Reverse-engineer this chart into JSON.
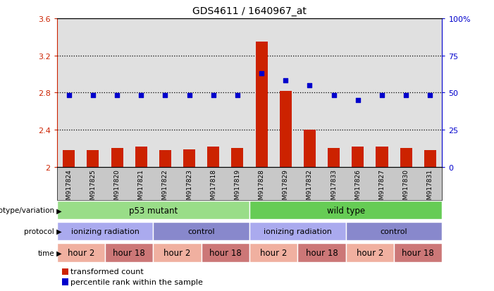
{
  "title": "GDS4611 / 1640967_at",
  "samples": [
    "GSM917824",
    "GSM917825",
    "GSM917820",
    "GSM917821",
    "GSM917822",
    "GSM917823",
    "GSM917818",
    "GSM917819",
    "GSM917828",
    "GSM917829",
    "GSM917832",
    "GSM917833",
    "GSM917826",
    "GSM917827",
    "GSM917830",
    "GSM917831"
  ],
  "bar_values": [
    2.18,
    2.18,
    2.2,
    2.22,
    2.18,
    2.19,
    2.22,
    2.2,
    3.35,
    2.82,
    2.4,
    2.2,
    2.22,
    2.22,
    2.2,
    2.18
  ],
  "dot_values": [
    48,
    48,
    48,
    48,
    48,
    48,
    48,
    48,
    63,
    58,
    55,
    48,
    45,
    48,
    48,
    48
  ],
  "ylim_left": [
    2.0,
    3.6
  ],
  "ylim_right": [
    0,
    100
  ],
  "yticks_left": [
    2.0,
    2.4,
    2.8,
    3.2,
    3.6
  ],
  "ytick_labels_left": [
    "2",
    "2.4",
    "2.8",
    "3.2",
    "3.6"
  ],
  "yticks_right": [
    0,
    25,
    50,
    75,
    100
  ],
  "ytick_labels_right": [
    "0",
    "25",
    "50",
    "75",
    "100%"
  ],
  "hlines": [
    2.4,
    2.8,
    3.2
  ],
  "bar_color": "#cc2200",
  "dot_color": "#0000cc",
  "bar_bottom": 2.0,
  "genotype_groups": [
    {
      "label": "p53 mutant",
      "start": 0,
      "end": 8,
      "color": "#99dd88"
    },
    {
      "label": "wild type",
      "start": 8,
      "end": 16,
      "color": "#66cc55"
    }
  ],
  "protocol_groups": [
    {
      "label": "ionizing radiation",
      "start": 0,
      "end": 4,
      "color": "#aaaaee"
    },
    {
      "label": "control",
      "start": 4,
      "end": 8,
      "color": "#8888cc"
    },
    {
      "label": "ionizing radiation",
      "start": 8,
      "end": 12,
      "color": "#aaaaee"
    },
    {
      "label": "control",
      "start": 12,
      "end": 16,
      "color": "#8888cc"
    }
  ],
  "time_groups": [
    {
      "label": "hour 2",
      "start": 0,
      "end": 2,
      "color": "#f0b0a0"
    },
    {
      "label": "hour 18",
      "start": 2,
      "end": 4,
      "color": "#cc7777"
    },
    {
      "label": "hour 2",
      "start": 4,
      "end": 6,
      "color": "#f0b0a0"
    },
    {
      "label": "hour 18",
      "start": 6,
      "end": 8,
      "color": "#cc7777"
    },
    {
      "label": "hour 2",
      "start": 8,
      "end": 10,
      "color": "#f0b0a0"
    },
    {
      "label": "hour 18",
      "start": 10,
      "end": 12,
      "color": "#cc7777"
    },
    {
      "label": "hour 2",
      "start": 12,
      "end": 14,
      "color": "#f0b0a0"
    },
    {
      "label": "hour 18",
      "start": 14,
      "end": 16,
      "color": "#cc7777"
    }
  ],
  "legend_bar_label": "transformed count",
  "legend_dot_label": "percentile rank within the sample",
  "row_labels": [
    "genotype/variation",
    "protocol",
    "time"
  ],
  "bg_color": "#ffffff",
  "plot_bg_color": "#e0e0e0",
  "grid_color": "#000000",
  "tick_label_area_color": "#c8c8c8"
}
